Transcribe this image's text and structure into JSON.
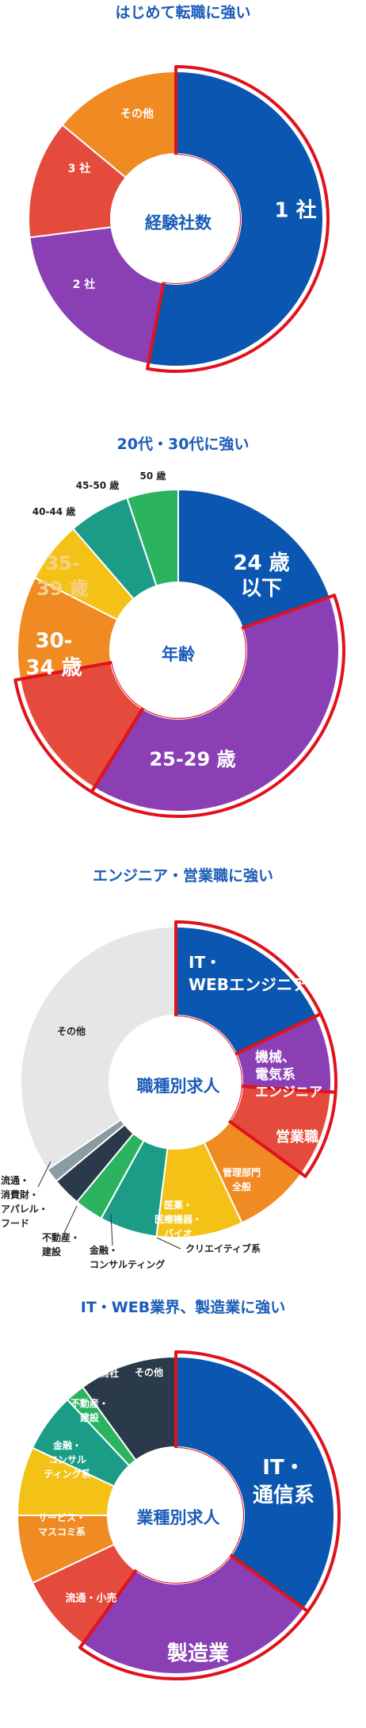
{
  "chart_data": [
    {
      "type": "pie",
      "title": "はじめて転職に強い",
      "center_label": "経験社数",
      "slices": [
        {
          "label": "1 社",
          "value": 53,
          "color": "#0a56b0",
          "highlight": true
        },
        {
          "label": "2 社",
          "value": 20,
          "color": "#8a3fb5"
        },
        {
          "label": "3 社",
          "value": 13,
          "color": "#e54b3c"
        },
        {
          "label": "その他",
          "value": 14,
          "color": "#f08a22"
        }
      ]
    },
    {
      "type": "pie",
      "title": "20代・30代に強い",
      "center_label": "年齢",
      "slices": [
        {
          "label": "24 歳以下",
          "value": 19,
          "color": "#0a56b0",
          "highlight": false
        },
        {
          "label": "25-29 歳",
          "value": 38,
          "color": "#8a3fb5",
          "highlight": true
        },
        {
          "label": "30-34 歳",
          "value": 13,
          "color": "#e54b3c",
          "highlight": true
        },
        {
          "label": "35-39 歳",
          "value": 10,
          "color": "#f08a22"
        },
        {
          "label": "40-44 歳",
          "value": 6,
          "color": "#f4c217"
        },
        {
          "label": "45-50 歳",
          "value": 6,
          "color": "#1a9c86"
        },
        {
          "label": "50 歳",
          "value": 5,
          "color": "#2bb35f"
        }
      ]
    },
    {
      "type": "pie",
      "title": "エンジニア・営業職に強い",
      "center_label": "職種別求人",
      "slices": [
        {
          "label": "IT・WEBエンジニア",
          "value": 18,
          "color": "#0a56b0",
          "highlight": true
        },
        {
          "label": "機械、電気系エンジニア",
          "value": 8,
          "color": "#8a3fb5",
          "highlight": true
        },
        {
          "label": "営業職",
          "value": 9,
          "color": "#e54b3c",
          "highlight": true
        },
        {
          "label": "管理部門全般",
          "value": 8,
          "color": "#f08a22"
        },
        {
          "label": "医薬・医療機器・バイオ",
          "value": 9,
          "color": "#f4c217"
        },
        {
          "label": "クリエイティブ系",
          "value": 6,
          "color": "#1a9c86"
        },
        {
          "label": "金融・コンサルティング",
          "value": 3,
          "color": "#2bb35f"
        },
        {
          "label": "不動産・建設",
          "value": 3,
          "color": "#2b3a4a"
        },
        {
          "label": "流通・消費財・アパレル・フード",
          "value": 1.5,
          "color": "#8c9aa2"
        },
        {
          "label": "その他",
          "value": 34.5,
          "color": "#e6e6e6"
        }
      ]
    },
    {
      "type": "pie",
      "title": "IT・WEB業界、製造業に強い",
      "center_label": "業種別求人",
      "slices": [
        {
          "label": "IT・通信系",
          "value": 35,
          "color": "#0a56b0",
          "highlight": true
        },
        {
          "label": "製造業",
          "value": 25,
          "color": "#8a3fb5",
          "highlight": true
        },
        {
          "label": "流通・小売",
          "value": 8,
          "color": "#e54b3c"
        },
        {
          "label": "サービス・マスコミ系",
          "value": 7,
          "color": "#f08a22"
        },
        {
          "label": "金融・コンサルティング系",
          "value": 7,
          "color": "#f4c217"
        },
        {
          "label": "不動産・建設",
          "value": 6,
          "color": "#1a9c86"
        },
        {
          "label": "商社",
          "value": 2,
          "color": "#2bb35f"
        },
        {
          "label": "その他",
          "value": 10,
          "color": "#2b3a4a"
        }
      ]
    }
  ]
}
